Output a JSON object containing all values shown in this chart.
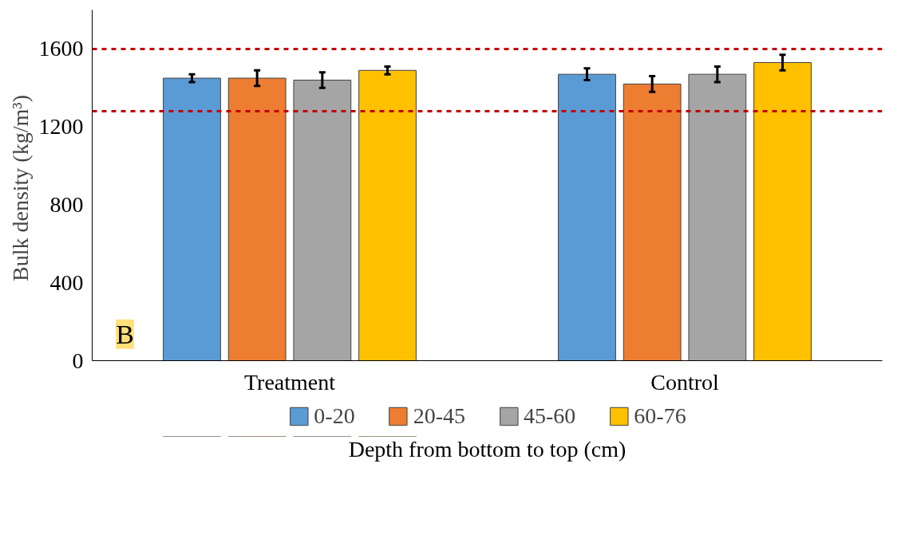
{
  "chart_data": {
    "type": "bar",
    "ylabel": "Bulk density  (kg/m³)",
    "xlabel": "Depth from bottom to top (cm)",
    "categories": [
      "Treatment",
      "Control"
    ],
    "series": [
      {
        "name": "0-20",
        "color": "#5b9bd5",
        "values": [
          1450,
          1470
        ],
        "errors": [
          20,
          30
        ]
      },
      {
        "name": "20-45",
        "color": "#ed7d31",
        "values": [
          1450,
          1420
        ],
        "errors": [
          40,
          40
        ]
      },
      {
        "name": "45-60",
        "color": "#a5a5a5",
        "values": [
          1440,
          1470
        ],
        "errors": [
          40,
          40
        ]
      },
      {
        "name": "60-76",
        "color": "#ffc000",
        "values": [
          1490,
          1530
        ],
        "errors": [
          20,
          40
        ]
      }
    ],
    "ylim": [
      0,
      1800
    ],
    "yticks": [
      0,
      400,
      800,
      1200,
      1600
    ],
    "ref_lines": [
      {
        "axis": "y",
        "value": 1600,
        "color": "#c00000",
        "line_style": "dashed"
      },
      {
        "axis": "y",
        "value": 1280,
        "color": "#c00000",
        "line_style": "dashed"
      }
    ],
    "annotations": [
      "B"
    ],
    "grid": false,
    "legend": "bottom"
  }
}
